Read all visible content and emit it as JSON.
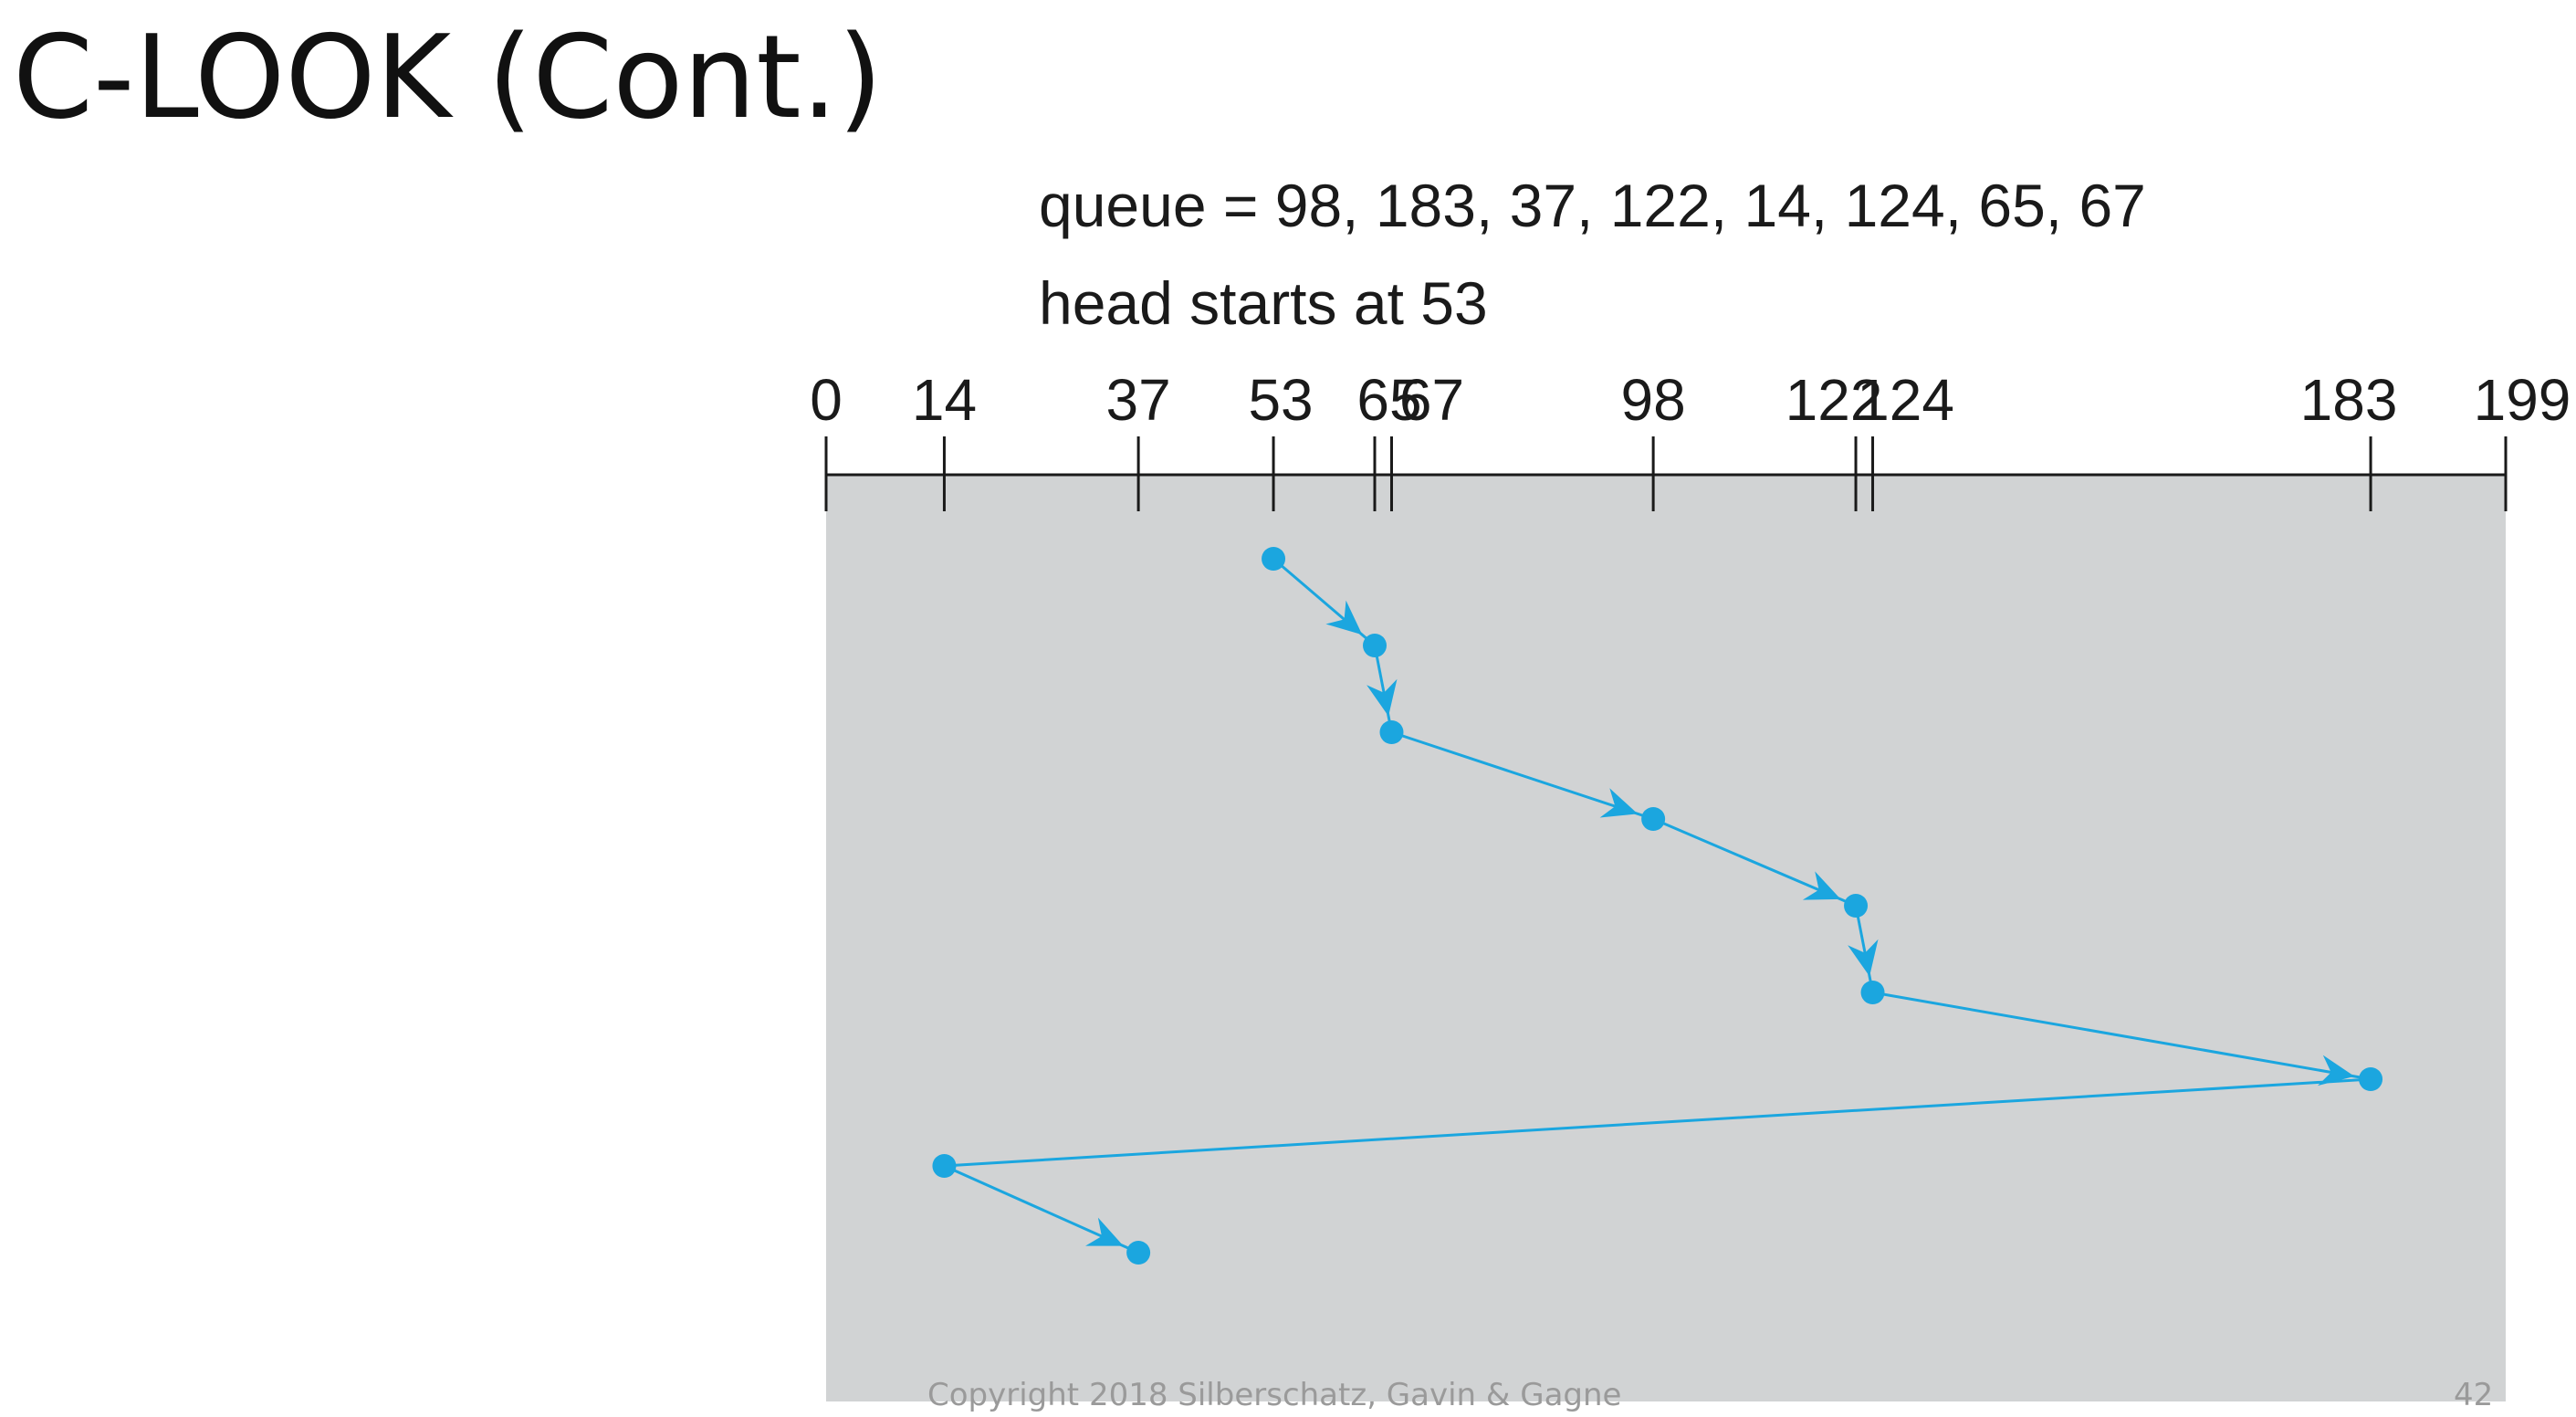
{
  "slide": {
    "title": "C-LOOK (Cont.)",
    "copyright": "Copyright 2018 Silberschatz, Gavin & Gagne",
    "page_number": "42"
  },
  "diagram": {
    "queue_caption": "queue = 98, 183, 37, 122, 14, 124, 65, 67",
    "head_caption": "head starts at 53",
    "axis_min": 0,
    "axis_max": 199,
    "ticks": [
      0,
      14,
      37,
      53,
      65,
      67,
      98,
      122,
      124,
      183,
      199
    ],
    "tick_labels": [
      "0",
      "14",
      "37",
      "53",
      "65",
      "67",
      "98",
      "122",
      "124",
      "183",
      "199"
    ],
    "head_path": [
      53,
      65,
      67,
      98,
      122,
      124,
      183,
      14,
      37
    ],
    "colors": {
      "panel": "#d1d3d4",
      "path": "#1ba6df",
      "axis": "#1a1a1a"
    }
  }
}
